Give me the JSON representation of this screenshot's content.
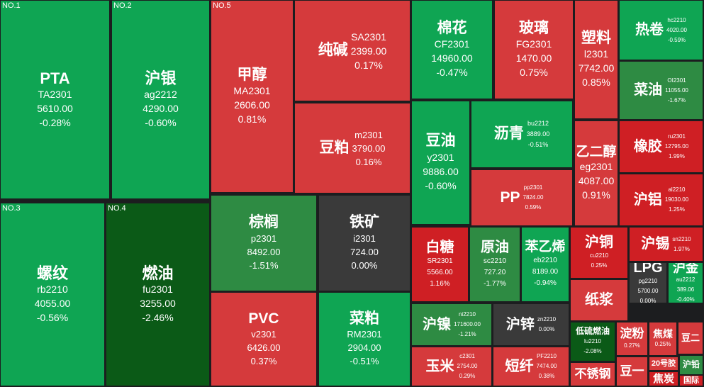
{
  "colors": {
    "up_strong": "#cf1f24",
    "up": "#d53a3c",
    "flat": "#3a3a3a",
    "down": "#0fa553",
    "down_mid": "#2e8b43",
    "down_strong": "#0b5a17",
    "background": "#1c1d1f"
  },
  "chart_data": {
    "type": "treemap",
    "title": "",
    "tiles": [
      {
        "rank": "NO.1",
        "name": "PTA",
        "code": "TA2301",
        "price": "5610.00",
        "change": "-0.28%",
        "change_pct": -0.28
      },
      {
        "rank": "NO.2",
        "name": "沪银",
        "code": "ag2212",
        "price": "4290.00",
        "change": "-0.60%",
        "change_pct": -0.6
      },
      {
        "rank": "NO.5",
        "name": "甲醇",
        "code": "MA2301",
        "price": "2606.00",
        "change": "0.81%",
        "change_pct": 0.81
      },
      {
        "name": "纯碱",
        "code": "SA2301",
        "price": "2399.00",
        "change": "0.17%",
        "change_pct": 0.17
      },
      {
        "name": "棉花",
        "code": "CF2301",
        "price": "14960.00",
        "change": "-0.47%",
        "change_pct": -0.47
      },
      {
        "name": "玻璃",
        "code": "FG2301",
        "price": "1470.00",
        "change": "0.75%",
        "change_pct": 0.75
      },
      {
        "name": "塑料",
        "code": "l2301",
        "price": "7742.00",
        "change": "0.85%",
        "change_pct": 0.85
      },
      {
        "name": "热卷",
        "code": "hc2210",
        "price": "4020.00",
        "change": "-0.59%",
        "change_pct": -0.59
      },
      {
        "name": "菜油",
        "code": "OI2301",
        "price": "11055.00",
        "change": "-1.67%",
        "change_pct": -1.67
      },
      {
        "name": "豆粕",
        "code": "m2301",
        "price": "3790.00",
        "change": "0.16%",
        "change_pct": 0.16
      },
      {
        "name": "豆油",
        "code": "y2301",
        "price": "9886.00",
        "change": "-0.60%",
        "change_pct": -0.6
      },
      {
        "name": "沥青",
        "code": "bu2212",
        "price": "3889.00",
        "change": "-0.51%",
        "change_pct": -0.51
      },
      {
        "name": "乙二醇",
        "code": "eg2301",
        "price": "4087.00",
        "change": "0.91%",
        "change_pct": 0.91
      },
      {
        "name": "橡胶",
        "code": "ru2301",
        "price": "12795.00",
        "change": "1.99%",
        "change_pct": 1.99
      },
      {
        "name": "PP",
        "code": "pp2301",
        "price": "7824.00",
        "change": "0.59%",
        "change_pct": 0.59
      },
      {
        "name": "沪铝",
        "code": "al2210",
        "price": "19030.00",
        "change": "1.25%",
        "change_pct": 1.25
      },
      {
        "rank": "NO.3",
        "name": "螺纹",
        "code": "rb2210",
        "price": "4055.00",
        "change": "-0.56%",
        "change_pct": -0.56
      },
      {
        "rank": "NO.4",
        "name": "燃油",
        "code": "fu2301",
        "price": "3255.00",
        "change": "-2.46%",
        "change_pct": -2.46
      },
      {
        "name": "棕榈",
        "code": "p2301",
        "price": "8492.00",
        "change": "-1.51%",
        "change_pct": -1.51
      },
      {
        "name": "铁矿",
        "code": "i2301",
        "price": "724.00",
        "change": "0.00%",
        "change_pct": 0.0
      },
      {
        "name": "PVC",
        "code": "v2301",
        "price": "6426.00",
        "change": "0.37%",
        "change_pct": 0.37
      },
      {
        "name": "菜粕",
        "code": "RM2301",
        "price": "2904.00",
        "change": "-0.51%",
        "change_pct": -0.51
      },
      {
        "name": "白糖",
        "code": "SR2301",
        "price": "5566.00",
        "change": "1.16%",
        "change_pct": 1.16
      },
      {
        "name": "原油",
        "code": "sc2210",
        "price": "727.20",
        "change": "-1.77%",
        "change_pct": -1.77
      },
      {
        "name": "苯乙烯",
        "code": "eb2210",
        "price": "8189.00",
        "change": "-0.94%",
        "change_pct": -0.94
      },
      {
        "name": "沪铜",
        "code": "cu2210",
        "price": "",
        "change": "0.25%",
        "change_pct": 0.25
      },
      {
        "name": "沪锡",
        "code": "sn2210",
        "price": "",
        "change": "1.97%",
        "change_pct": 1.97
      },
      {
        "name": "LPG",
        "code": "pg2210",
        "price": "5700.00",
        "change": "0.00%",
        "change_pct": 0.0
      },
      {
        "name": "沪金",
        "code": "au2212",
        "price": "389.06",
        "change": "-0.40%",
        "change_pct": -0.4
      },
      {
        "name": "纸浆",
        "code": "",
        "price": "",
        "change": "",
        "change_pct": null
      },
      {
        "name": "沪镍",
        "code": "ni2210",
        "price": "171600.00",
        "change": "-1.21%",
        "change_pct": -1.21
      },
      {
        "name": "沪锌",
        "code": "zn2210",
        "price": "",
        "change": "0.00%",
        "change_pct": 0.0
      },
      {
        "name": "低硫燃油",
        "code": "lu2210",
        "price": "",
        "change": "-2.08%",
        "change_pct": -2.08
      },
      {
        "name": "淀粉",
        "code": "",
        "price": "",
        "change": "0.27%",
        "change_pct": 0.27
      },
      {
        "name": "焦煤",
        "code": "",
        "price": "",
        "change": "0.25%",
        "change_pct": 0.25
      },
      {
        "name": "豆二",
        "code": "",
        "price": "",
        "change": "",
        "change_pct": null
      },
      {
        "name": "玉米",
        "code": "c2301",
        "price": "2754.00",
        "change": "0.29%",
        "change_pct": 0.29
      },
      {
        "name": "短纤",
        "code": "PF2210",
        "price": "7474.00",
        "change": "0.38%",
        "change_pct": 0.38
      },
      {
        "name": "不锈钢",
        "code": "",
        "price": "",
        "change": "",
        "change_pct": null
      },
      {
        "name": "豆一",
        "code": "",
        "price": "",
        "change": "",
        "change_pct": null
      },
      {
        "name": "20号胶",
        "code": "",
        "price": "",
        "change": "",
        "change_pct": null
      },
      {
        "name": "焦炭",
        "code": "",
        "price": "",
        "change": "",
        "change_pct": null
      },
      {
        "name": "沪铅",
        "code": "",
        "price": "",
        "change": "",
        "change_pct": null
      },
      {
        "name": "国际",
        "code": "",
        "price": "",
        "change": "",
        "change_pct": null
      }
    ]
  }
}
